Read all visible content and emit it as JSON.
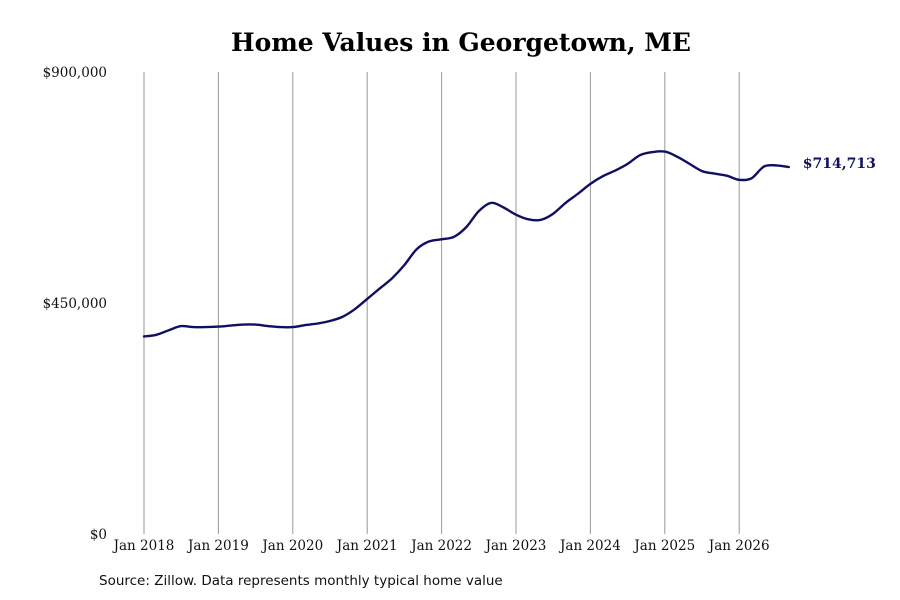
{
  "chart_data": {
    "type": "line",
    "title": "Home Values in Georgetown, ME",
    "xlabel": "",
    "ylabel": "",
    "ylim": [
      0,
      900000
    ],
    "xlim": [
      "2018-01",
      "2026-09"
    ],
    "y_ticks": [
      {
        "value": 0,
        "label": "$0"
      },
      {
        "value": 450000,
        "label": "$450,000"
      },
      {
        "value": 900000,
        "label": "$900,000"
      }
    ],
    "x_ticks": [
      {
        "date": "2018-01",
        "label": "Jan 2018"
      },
      {
        "date": "2019-01",
        "label": "Jan 2019"
      },
      {
        "date": "2020-01",
        "label": "Jan 2020"
      },
      {
        "date": "2021-01",
        "label": "Jan 2021"
      },
      {
        "date": "2022-01",
        "label": "Jan 2022"
      },
      {
        "date": "2023-01",
        "label": "Jan 2023"
      },
      {
        "date": "2024-01",
        "label": "Jan 2024"
      },
      {
        "date": "2025-01",
        "label": "Jan 2025"
      },
      {
        "date": "2026-01",
        "label": "Jan 2026"
      }
    ],
    "grid": "vertical",
    "line_color": "#101060",
    "series": [
      {
        "end_label": "$714,713",
        "points": [
          [
            "2018-01",
            385000
          ],
          [
            "2018-03",
            388000
          ],
          [
            "2018-05",
            397000
          ],
          [
            "2018-07",
            405000
          ],
          [
            "2018-09",
            403000
          ],
          [
            "2018-11",
            403000
          ],
          [
            "2019-01",
            404000
          ],
          [
            "2019-03",
            406000
          ],
          [
            "2019-05",
            408000
          ],
          [
            "2019-07",
            408000
          ],
          [
            "2019-09",
            405000
          ],
          [
            "2019-11",
            403000
          ],
          [
            "2020-01",
            403000
          ],
          [
            "2020-03",
            407000
          ],
          [
            "2020-05",
            410000
          ],
          [
            "2020-07",
            415000
          ],
          [
            "2020-09",
            423000
          ],
          [
            "2020-11",
            438000
          ],
          [
            "2021-01",
            458000
          ],
          [
            "2021-03",
            478000
          ],
          [
            "2021-05",
            498000
          ],
          [
            "2021-07",
            524000
          ],
          [
            "2021-09",
            555000
          ],
          [
            "2021-11",
            570000
          ],
          [
            "2022-01",
            574000
          ],
          [
            "2022-03",
            579000
          ],
          [
            "2022-05",
            598000
          ],
          [
            "2022-07",
            629000
          ],
          [
            "2022-09",
            645000
          ],
          [
            "2022-11",
            636000
          ],
          [
            "2023-01",
            622000
          ],
          [
            "2023-03",
            613000
          ],
          [
            "2023-05",
            612000
          ],
          [
            "2023-07",
            624000
          ],
          [
            "2023-09",
            645000
          ],
          [
            "2023-11",
            663000
          ],
          [
            "2024-01",
            682000
          ],
          [
            "2024-03",
            697000
          ],
          [
            "2024-05",
            708000
          ],
          [
            "2024-07",
            721000
          ],
          [
            "2024-09",
            738000
          ],
          [
            "2024-11",
            744000
          ],
          [
            "2025-01",
            745000
          ],
          [
            "2025-03",
            735000
          ],
          [
            "2025-05",
            721000
          ],
          [
            "2025-07",
            707000
          ],
          [
            "2025-09",
            702000
          ],
          [
            "2025-11",
            698000
          ],
          [
            "2026-01",
            690000
          ],
          [
            "2026-03",
            693000
          ],
          [
            "2026-05",
            716000
          ],
          [
            "2026-07",
            718000
          ],
          [
            "2026-09",
            714713
          ]
        ]
      }
    ],
    "source_note": "Source: Zillow. Data represents monthly typical home value"
  }
}
